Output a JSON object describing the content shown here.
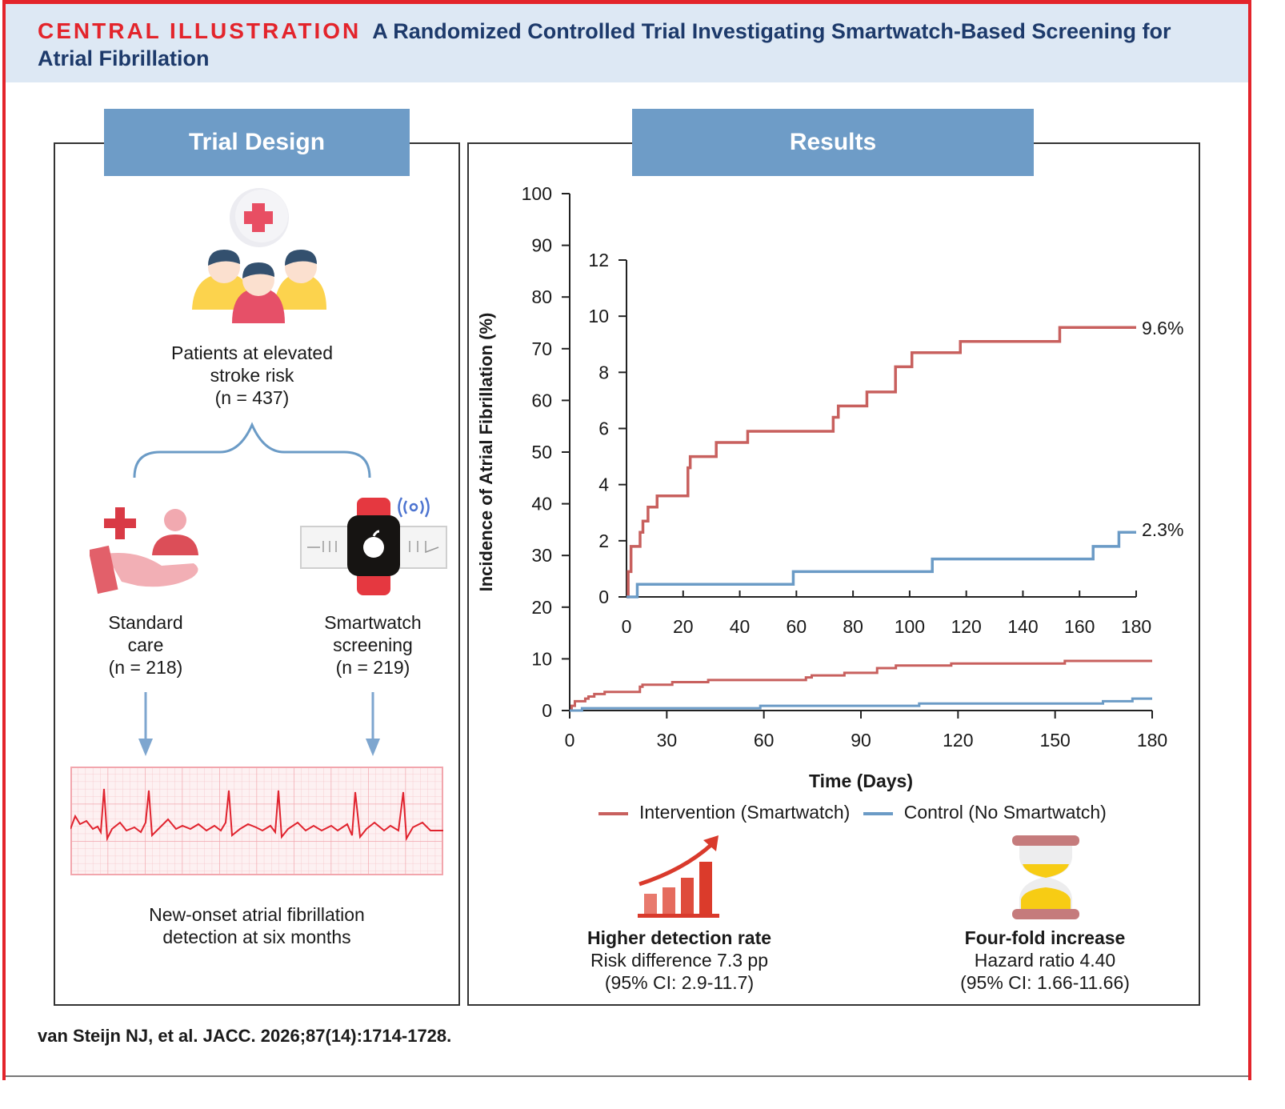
{
  "header": {
    "kicker": "CENTRAL ILLUSTRATION",
    "title": "A Randomized Controlled Trial Investigating Smartwatch-Based Screening for Atrial Fibrillation"
  },
  "trial_design": {
    "tab_label": "Trial Design",
    "population": {
      "line1": "Patients at elevated",
      "line2": "stroke risk",
      "line3": "(n = 437)"
    },
    "arm_standard": {
      "line1": "Standard",
      "line2": "care",
      "line3": "(n = 218)"
    },
    "arm_smartwatch": {
      "line1": "Smartwatch",
      "line2": "screening",
      "line3": "(n = 219)"
    },
    "outcome": {
      "line1": "New-onset atrial fibrillation",
      "line2": "detection at six months"
    }
  },
  "results": {
    "tab_label": "Results",
    "legend": {
      "intervention": "Intervention (Smartwatch)",
      "control": "Control (No Smartwatch)"
    },
    "finding1": {
      "title": "Higher detection rate",
      "line1": "Risk difference 7.3 pp",
      "line2": "(95% CI: 2.9-11.7)"
    },
    "finding2": {
      "title": "Four-fold increase",
      "line1": "Hazard ratio 4.40",
      "line2": "(95% CI: 1.66-11.66)"
    }
  },
  "colors": {
    "intervention": "#c8605e",
    "control": "#6b9bc6",
    "accent_red": "#e3242b",
    "tab_blue": "#6e9cc7",
    "title_navy": "#1d3a6b"
  },
  "chart_data": [
    {
      "type": "line",
      "id": "main",
      "title": "",
      "xlabel": "Time (Days)",
      "ylabel": "Incidence of Atrial Fibrillation (%)",
      "xlim": [
        0,
        180
      ],
      "ylim": [
        0,
        100
      ],
      "xticks": [
        0,
        30,
        60,
        90,
        120,
        150,
        180
      ],
      "yticks": [
        0,
        10,
        20,
        30,
        40,
        50,
        60,
        70,
        80,
        90,
        100
      ],
      "grid": false,
      "legend_position": "bottom",
      "series": [
        {
          "name": "Intervention (Smartwatch)",
          "step": true,
          "points": [
            [
              0,
              0
            ],
            [
              0.6,
              0.9
            ],
            [
              1.6,
              1.8
            ],
            [
              4.8,
              2.3
            ],
            [
              5.8,
              2.7
            ],
            [
              7.6,
              3.2
            ],
            [
              10.8,
              3.6
            ],
            [
              21.7,
              4.6
            ],
            [
              22.5,
              5.0
            ],
            [
              31.7,
              5.5
            ],
            [
              42.8,
              5.9
            ],
            [
              73,
              6.4
            ],
            [
              74.8,
              6.8
            ],
            [
              84.9,
              7.3
            ],
            [
              95,
              8.2
            ],
            [
              100.8,
              8.7
            ],
            [
              117.9,
              9.1
            ],
            [
              153,
              9.6
            ],
            [
              180,
              9.6
            ]
          ]
        },
        {
          "name": "Control (No Smartwatch)",
          "step": true,
          "points": [
            [
              0,
              0
            ],
            [
              3.8,
              0.45
            ],
            [
              58.9,
              0.9
            ],
            [
              108,
              1.35
            ],
            [
              164.8,
              1.8
            ],
            [
              173.9,
              2.3
            ],
            [
              180,
              2.3
            ]
          ]
        }
      ]
    },
    {
      "type": "line",
      "id": "inset",
      "xlim": [
        0,
        180
      ],
      "ylim": [
        0,
        12
      ],
      "xticks": [
        0,
        20,
        40,
        60,
        80,
        100,
        120,
        140,
        160,
        180
      ],
      "yticks": [
        0,
        2,
        4,
        6,
        8,
        10,
        12
      ],
      "grid": false,
      "end_labels": [
        "9.6%",
        "2.3%"
      ],
      "series": [
        {
          "name": "Intervention (Smartwatch)",
          "step": true,
          "points": [
            [
              0,
              0
            ],
            [
              0.6,
              0.9
            ],
            [
              1.6,
              1.8
            ],
            [
              4.8,
              2.3
            ],
            [
              5.8,
              2.7
            ],
            [
              7.6,
              3.2
            ],
            [
              10.8,
              3.6
            ],
            [
              21.7,
              4.6
            ],
            [
              22.5,
              5.0
            ],
            [
              31.7,
              5.5
            ],
            [
              42.8,
              5.9
            ],
            [
              73,
              6.4
            ],
            [
              74.8,
              6.8
            ],
            [
              84.9,
              7.3
            ],
            [
              95,
              8.2
            ],
            [
              100.8,
              8.7
            ],
            [
              117.9,
              9.1
            ],
            [
              153,
              9.6
            ],
            [
              180,
              9.6
            ]
          ]
        },
        {
          "name": "Control (No Smartwatch)",
          "step": true,
          "points": [
            [
              0,
              0
            ],
            [
              3.8,
              0.45
            ],
            [
              58.9,
              0.9
            ],
            [
              108,
              1.35
            ],
            [
              164.8,
              1.8
            ],
            [
              173.9,
              2.3
            ],
            [
              180,
              2.3
            ]
          ]
        }
      ]
    }
  ],
  "citation": "van Steijn NJ, et al. JACC. 2026;87(14):1714-1728."
}
